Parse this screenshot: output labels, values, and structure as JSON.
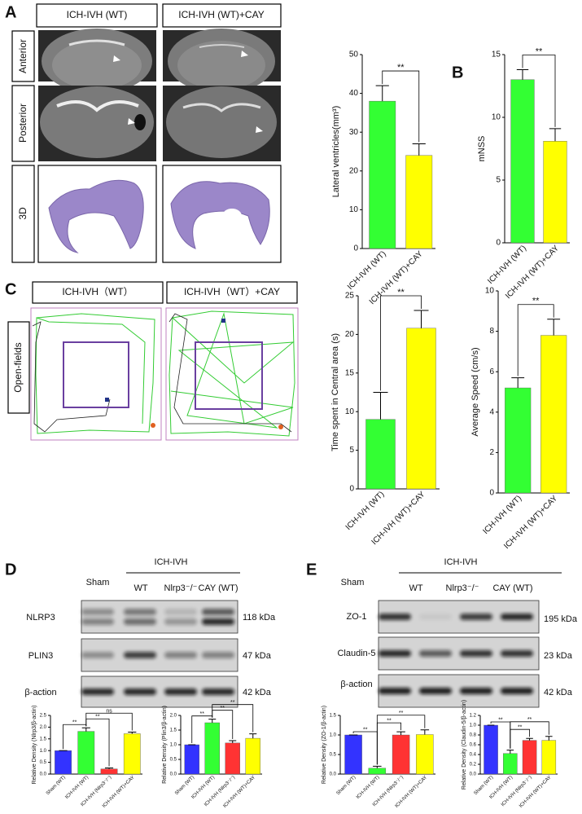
{
  "panel_labels": [
    "A",
    "B",
    "C",
    "D",
    "E"
  ],
  "mri": {
    "columns": [
      "ICH-IVH (WT)",
      "ICH-IVH (WT)+CAY"
    ],
    "rows": [
      "Anterior",
      "Posterior",
      "3D"
    ]
  },
  "open_field": {
    "columns": [
      "ICH-IVH（WT）",
      "ICH-IVH（WT）+CAY"
    ],
    "row": "Open-fields"
  },
  "blot_d": {
    "sham": "Sham",
    "group": "ICH-IVH",
    "lanes": [
      "WT",
      "Nlrp3⁻/⁻",
      "CAY (WT)"
    ],
    "proteins": [
      "NLRP3",
      "PLIN3",
      "β-action"
    ],
    "sizes": [
      "118 kDa",
      "47 kDa",
      "42 kDa"
    ]
  },
  "blot_e": {
    "sham": "Sham",
    "group": "ICH-IVH",
    "lanes": [
      "WT",
      "Nlrp3⁻/⁻",
      "CAY (WT)"
    ],
    "proteins": [
      "ZO-1",
      "Claudin-5",
      "β-action"
    ],
    "sizes": [
      "195 kDa",
      "23 kDa",
      "42 kDa"
    ]
  },
  "chart_data": [
    {
      "type": "bar",
      "y_label": "Lateral ventricles(mm³)",
      "categories": [
        "ICH-IVH (WT)",
        "ICH-IVH (WT)+CAY"
      ],
      "values": [
        38,
        24
      ],
      "errors": [
        4,
        3
      ],
      "colors": [
        "#33ff33",
        "#ffff00"
      ],
      "ylim": [
        0,
        50
      ],
      "yticks": [
        0,
        10,
        20,
        30,
        40,
        50
      ],
      "annotations": [
        "**"
      ]
    },
    {
      "type": "bar",
      "y_label": "mNSS",
      "categories": [
        "ICH-IVH (WT)",
        "ICH-IVH (WT)+CAY"
      ],
      "values": [
        13,
        8.1
      ],
      "errors": [
        0.8,
        1.0
      ],
      "colors": [
        "#33ff33",
        "#ffff00"
      ],
      "ylim": [
        0,
        15
      ],
      "yticks": [
        0,
        5,
        10,
        15
      ],
      "annotations": [
        "**"
      ]
    },
    {
      "type": "bar",
      "y_label": "Time spent in Central area (s)",
      "categories": [
        "ICH-IVH (WT)",
        "ICH-IVH (WT)+CAY"
      ],
      "values": [
        9,
        20.8
      ],
      "errors": [
        3.5,
        2.3
      ],
      "colors": [
        "#33ff33",
        "#ffff00"
      ],
      "ylim": [
        0,
        25
      ],
      "yticks": [
        0,
        5,
        10,
        15,
        20,
        25
      ],
      "annotations": [
        "**"
      ]
    },
    {
      "type": "bar",
      "y_label": "Average Speed (cm/s)",
      "categories": [
        "ICH-IVH (WT)",
        "ICH-IVH (WT)+CAY"
      ],
      "values": [
        5.2,
        7.8
      ],
      "errors": [
        0.5,
        0.8
      ],
      "colors": [
        "#33ff33",
        "#ffff00"
      ],
      "ylim": [
        0,
        10
      ],
      "yticks": [
        0,
        2,
        4,
        6,
        8,
        10
      ],
      "annotations": [
        "**"
      ]
    },
    {
      "type": "bar",
      "y_label": "Relative Density (Nlrp3/β-actin)",
      "categories": [
        "Sham (WT)",
        "ICH-IVH (WT)",
        "ICH-IVH (Nlrp3⁻/⁻)",
        "ICH-IVH (WT)+CAY"
      ],
      "values": [
        1.0,
        1.82,
        0.22,
        1.72
      ],
      "errors": [
        0,
        0.15,
        0.04,
        0.07
      ],
      "colors": [
        "#3333ff",
        "#33ff33",
        "#ff3333",
        "#ffff00"
      ],
      "ylim": [
        0,
        2.5
      ],
      "yticks": [
        {
          "value": 0,
          "label": "0.0"
        },
        0.5,
        {
          "value": 1,
          "label": "1.0"
        },
        1.5,
        {
          "value": 2,
          "label": "2.0"
        },
        2.5
      ],
      "annotations": [
        "**",
        "**",
        "ns"
      ]
    },
    {
      "type": "bar",
      "y_label": "Relative Density (Plin3/β-actin)",
      "categories": [
        "Sham (WT)",
        "ICH-IVH (WT)",
        "ICH-IVH (Nlrp3⁻/⁻)",
        "ICH-IVH (WT)+CAY"
      ],
      "values": [
        1.0,
        1.75,
        1.06,
        1.22
      ],
      "errors": [
        0,
        0.12,
        0.08,
        0.15
      ],
      "colors": [
        "#3333ff",
        "#33ff33",
        "#ff3333",
        "#ffff00"
      ],
      "ylim": [
        0,
        2
      ],
      "yticks": [
        {
          "value": 0,
          "label": "0.0"
        },
        0.5,
        {
          "value": 1,
          "label": "1.0"
        },
        1.5,
        {
          "value": 2,
          "label": "2.0"
        }
      ],
      "annotations": [
        "**",
        "**",
        "**"
      ]
    },
    {
      "type": "bar",
      "y_label": "Relative Density (ZO-1/β-actin)",
      "categories": [
        "Sham (WT)",
        "ICH-IVH (WT)",
        "ICH-IVH (Nlrp3⁻/⁻)",
        "ICH-IVH (WT)+CAY"
      ],
      "values": [
        1.0,
        0.15,
        1.0,
        1.01
      ],
      "errors": [
        0,
        0.05,
        0.08,
        0.12
      ],
      "colors": [
        "#3333ff",
        "#33ff33",
        "#ff3333",
        "#ffff00"
      ],
      "ylim": [
        0,
        1.5
      ],
      "yticks": [
        {
          "value": 0,
          "label": "0.0"
        },
        0.5,
        {
          "value": 1,
          "label": "1.0"
        },
        1.5
      ],
      "annotations": [
        "**",
        "**",
        "**"
      ]
    },
    {
      "type": "bar",
      "y_label": "Relative Density (Claudin-5/β-actin)",
      "categories": [
        "Sham (WT)",
        "ICH-IVH (WT)",
        "ICH-IVH (Nlrp3⁻/⁻)",
        "ICH-IVH (WT)+CAY"
      ],
      "values": [
        1.0,
        0.42,
        0.69,
        0.69
      ],
      "errors": [
        0,
        0.07,
        0.04,
        0.08
      ],
      "colors": [
        "#3333ff",
        "#33ff33",
        "#ff3333",
        "#ffff00"
      ],
      "ylim": [
        0,
        1.2
      ],
      "yticks": [
        {
          "value": 0,
          "label": "0.0"
        },
        0.2,
        0.4,
        0.6,
        0.8,
        {
          "value": 1,
          "label": "1.0"
        },
        1.2
      ],
      "annotations": [
        "**",
        "**",
        "**"
      ]
    }
  ]
}
